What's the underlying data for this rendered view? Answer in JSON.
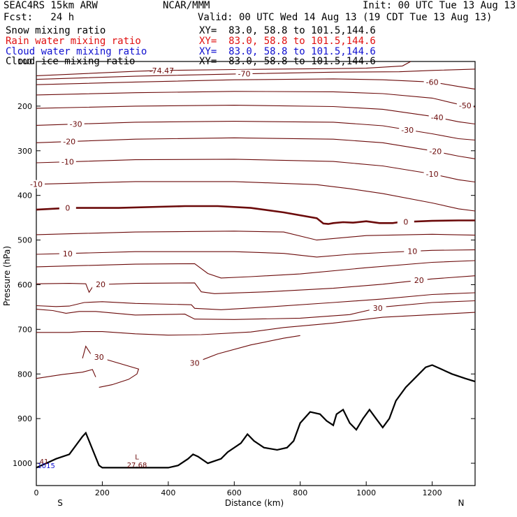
{
  "header": {
    "model": "SEAC4RS 15km ARW",
    "center": "NCAR/MMM",
    "init": "Init: 00 UTC Tue 13 Aug 13",
    "fcst": "Fcst:   24 h",
    "valid": "Valid: 00 UTC Wed 14 Aug 13 (19 CDT Tue 13 Aug 13)"
  },
  "legend": [
    {
      "name": "Snow mixing ratio",
      "xy": "XY=  83.0, 58.8 to 101.5,144.6",
      "color": "#000000"
    },
    {
      "name": "Rain water mixing ratio",
      "xy": "XY=  83.0, 58.8 to 101.5,144.6",
      "color": "#e01010"
    },
    {
      "name": "Cloud water mixing ratio",
      "xy": "XY=  83.0, 58.8 to 101.5,144.6",
      "color": "#1010d0"
    },
    {
      "name": "Cloud ice mixing ratio",
      "xy": "XY=  83.0, 58.8 to 101.5,144.6",
      "color": "#000000"
    }
  ],
  "chart_data": {
    "type": "line",
    "xlabel": "Distance (km)",
    "ylabel": "Pressure (hPa)",
    "xlim": [
      0,
      1330
    ],
    "ylim": [
      1050,
      100
    ],
    "xticks": [
      0,
      200,
      400,
      600,
      800,
      1000,
      1200
    ],
    "yticks": [
      100,
      200,
      300,
      400,
      500,
      600,
      700,
      800,
      900,
      1000
    ],
    "end_labels": {
      "left": "S",
      "right": "N"
    },
    "contour_color": "#6b0a0a",
    "terrain_color": "#000000",
    "isotherm_series": [
      {
        "label": "-74.47",
        "lx": 380,
        "points": [
          [
            0,
            132
          ],
          [
            300,
            122
          ],
          [
            380,
            120
          ],
          [
            600,
            118
          ],
          [
            900,
            116
          ],
          [
            1000,
            115
          ],
          [
            1110,
            110
          ],
          [
            1135,
            100
          ]
        ]
      },
      {
        "label": "-70",
        "lx": 630,
        "points": [
          [
            0,
            140
          ],
          [
            300,
            133
          ],
          [
            600,
            128
          ],
          [
            900,
            124
          ],
          [
            1100,
            123
          ],
          [
            1200,
            120
          ],
          [
            1330,
            117
          ]
        ]
      },
      {
        "label": "-60",
        "lx": 1200,
        "points": [
          [
            0,
            152
          ],
          [
            300,
            146
          ],
          [
            600,
            141
          ],
          [
            900,
            139
          ],
          [
            1050,
            141
          ],
          [
            1200,
            146
          ],
          [
            1280,
            156
          ],
          [
            1330,
            162
          ]
        ]
      },
      {
        "label": "-50",
        "lx": 1300,
        "points": [
          [
            0,
            175
          ],
          [
            300,
            170
          ],
          [
            600,
            167
          ],
          [
            900,
            168
          ],
          [
            1050,
            172
          ],
          [
            1200,
            182
          ],
          [
            1280,
            196
          ],
          [
            1330,
            202
          ]
        ]
      },
      {
        "label": "-40",
        "lx": 1215,
        "points": [
          [
            0,
            205
          ],
          [
            300,
            200
          ],
          [
            600,
            198
          ],
          [
            900,
            201
          ],
          [
            1050,
            207
          ],
          [
            1200,
            223
          ],
          [
            1280,
            235
          ],
          [
            1330,
            240
          ]
        ]
      },
      {
        "label": "-30",
        "lx": 120,
        "lx2": 1125,
        "points": [
          [
            0,
            243
          ],
          [
            300,
            236
          ],
          [
            600,
            234
          ],
          [
            900,
            236
          ],
          [
            1050,
            244
          ],
          [
            1200,
            262
          ],
          [
            1280,
            273
          ],
          [
            1330,
            276
          ]
        ]
      },
      {
        "label": "-20",
        "lx": 100,
        "lx2": 1210,
        "points": [
          [
            0,
            282
          ],
          [
            300,
            274
          ],
          [
            600,
            271
          ],
          [
            900,
            274
          ],
          [
            1050,
            282
          ],
          [
            1200,
            300
          ],
          [
            1280,
            312
          ],
          [
            1330,
            318
          ]
        ]
      },
      {
        "label": "-10",
        "lx": 95,
        "lx2": 1200,
        "points": [
          [
            0,
            327
          ],
          [
            300,
            320
          ],
          [
            600,
            319
          ],
          [
            900,
            324
          ],
          [
            1050,
            334
          ],
          [
            1200,
            352
          ],
          [
            1280,
            365
          ],
          [
            1330,
            370
          ]
        ]
      },
      {
        "label": "-10",
        "lx": 0,
        "points": [
          [
            0,
            375
          ],
          [
            300,
            369
          ],
          [
            600,
            369
          ],
          [
            850,
            376
          ],
          [
            950,
            385
          ],
          [
            1050,
            396
          ],
          [
            1200,
            417
          ],
          [
            1280,
            430
          ],
          [
            1330,
            435
          ]
        ]
      },
      {
        "label": "0",
        "lx": 95,
        "lx2": 1120,
        "bold": true,
        "points": [
          [
            0,
            432
          ],
          [
            100,
            428
          ],
          [
            250,
            428
          ],
          [
            450,
            424
          ],
          [
            550,
            424
          ],
          [
            650,
            428
          ],
          [
            750,
            438
          ],
          [
            850,
            451
          ],
          [
            870,
            463
          ],
          [
            885,
            464
          ],
          [
            900,
            462
          ],
          [
            930,
            460
          ],
          [
            960,
            461
          ],
          [
            1000,
            458
          ],
          [
            1040,
            462
          ],
          [
            1080,
            462
          ],
          [
            1100,
            460
          ],
          [
            1200,
            457
          ],
          [
            1280,
            456
          ],
          [
            1330,
            456
          ]
        ]
      },
      {
        "label": "",
        "lx": 0,
        "points": [
          [
            0,
            488
          ],
          [
            300,
            482
          ],
          [
            600,
            480
          ],
          [
            750,
            482
          ],
          [
            850,
            500
          ],
          [
            1000,
            490
          ],
          [
            1200,
            487
          ],
          [
            1330,
            489
          ]
        ]
      },
      {
        "label": "10",
        "lx": 95,
        "lx2": 1140,
        "points": [
          [
            0,
            532
          ],
          [
            300,
            526
          ],
          [
            600,
            526
          ],
          [
            750,
            530
          ],
          [
            800,
            534
          ],
          [
            850,
            538
          ],
          [
            950,
            532
          ],
          [
            1050,
            528
          ],
          [
            1200,
            523
          ],
          [
            1330,
            522
          ]
        ]
      },
      {
        "label": "",
        "lx": 0,
        "points": [
          [
            0,
            560
          ],
          [
            300,
            554
          ],
          [
            480,
            553
          ],
          [
            520,
            575
          ],
          [
            560,
            585
          ],
          [
            650,
            582
          ],
          [
            800,
            576
          ],
          [
            1000,
            562
          ],
          [
            1200,
            550
          ],
          [
            1330,
            546
          ]
        ]
      },
      {
        "label": "20",
        "lx": 195,
        "lx2": 1160,
        "points": [
          [
            0,
            598
          ],
          [
            100,
            597
          ],
          [
            150,
            598
          ],
          [
            160,
            617
          ],
          [
            175,
            600
          ],
          [
            300,
            597
          ],
          [
            480,
            596
          ],
          [
            500,
            616
          ],
          [
            540,
            620
          ],
          [
            700,
            616
          ],
          [
            900,
            608
          ],
          [
            1050,
            599
          ],
          [
            1200,
            587
          ],
          [
            1330,
            580
          ]
        ]
      },
      {
        "label": "",
        "lx": 0,
        "points": [
          [
            0,
            647
          ],
          [
            60,
            649
          ],
          [
            100,
            648
          ],
          [
            145,
            640
          ],
          [
            200,
            638
          ],
          [
            300,
            642
          ],
          [
            470,
            645
          ],
          [
            480,
            653
          ],
          [
            560,
            656
          ],
          [
            700,
            650
          ],
          [
            900,
            640
          ],
          [
            1050,
            632
          ],
          [
            1200,
            622
          ],
          [
            1330,
            618
          ]
        ]
      },
      {
        "label": "30",
        "lx": 1035,
        "points": [
          [
            0,
            655
          ],
          [
            50,
            658
          ],
          [
            90,
            664
          ],
          [
            130,
            660
          ],
          [
            180,
            660
          ],
          [
            300,
            668
          ],
          [
            450,
            666
          ],
          [
            480,
            677
          ],
          [
            600,
            678
          ],
          [
            800,
            675
          ],
          [
            950,
            667
          ],
          [
            1050,
            650
          ],
          [
            1200,
            640
          ],
          [
            1330,
            636
          ]
        ]
      },
      {
        "label": "",
        "lx": 0,
        "points": [
          [
            0,
            707
          ],
          [
            100,
            707
          ],
          [
            140,
            705
          ],
          [
            200,
            705
          ],
          [
            300,
            710
          ],
          [
            400,
            713
          ],
          [
            500,
            712
          ],
          [
            650,
            706
          ],
          [
            750,
            696
          ],
          [
            900,
            686
          ],
          [
            1050,
            673
          ],
          [
            1330,
            662
          ]
        ]
      },
      {
        "label": "30",
        "lx": 450,
        "points": [
          [
            480,
            775
          ],
          [
            550,
            755
          ],
          [
            650,
            735
          ],
          [
            750,
            720
          ],
          [
            800,
            714
          ]
        ]
      },
      {
        "label": "",
        "lx": 0,
        "points": [
          [
            0,
            810
          ],
          [
            80,
            801
          ],
          [
            140,
            796
          ],
          [
            170,
            790
          ],
          [
            180,
            807
          ]
        ]
      },
      {
        "label": "30",
        "lx": 195,
        "points": [
          [
            140,
            765
          ],
          [
            150,
            738
          ],
          [
            165,
            755
          ],
          [
            200,
            765
          ],
          [
            310,
            789
          ],
          [
            305,
            800
          ],
          [
            280,
            812
          ],
          [
            230,
            824
          ],
          [
            190,
            830
          ]
        ]
      }
    ],
    "terrain": [
      [
        0,
        1010
      ],
      [
        30,
        1000
      ],
      [
        60,
        990
      ],
      [
        100,
        980
      ],
      [
        140,
        940
      ],
      [
        150,
        932
      ],
      [
        160,
        950
      ],
      [
        190,
        1005
      ],
      [
        200,
        1010
      ],
      [
        400,
        1010
      ],
      [
        430,
        1005
      ],
      [
        460,
        990
      ],
      [
        475,
        980
      ],
      [
        490,
        985
      ],
      [
        520,
        1000
      ],
      [
        560,
        990
      ],
      [
        580,
        975
      ],
      [
        620,
        955
      ],
      [
        640,
        935
      ],
      [
        660,
        950
      ],
      [
        690,
        965
      ],
      [
        730,
        970
      ],
      [
        760,
        965
      ],
      [
        780,
        950
      ],
      [
        800,
        910
      ],
      [
        830,
        885
      ],
      [
        860,
        890
      ],
      [
        880,
        905
      ],
      [
        900,
        915
      ],
      [
        910,
        890
      ],
      [
        930,
        880
      ],
      [
        950,
        910
      ],
      [
        970,
        925
      ],
      [
        990,
        900
      ],
      [
        1010,
        880
      ],
      [
        1030,
        900
      ],
      [
        1050,
        920
      ],
      [
        1070,
        900
      ],
      [
        1090,
        860
      ],
      [
        1120,
        830
      ],
      [
        1140,
        815
      ],
      [
        1160,
        800
      ],
      [
        1180,
        785
      ],
      [
        1200,
        780
      ],
      [
        1230,
        790
      ],
      [
        1260,
        800
      ],
      [
        1300,
        810
      ],
      [
        1330,
        817
      ]
    ],
    "annotations": [
      {
        "text": "L",
        "x": 305,
        "p": 985
      },
      {
        "text": "27.68",
        "x": 305,
        "p": 1003
      },
      {
        "text": ".41",
        "x": 20,
        "p": 995
      },
      {
        "text": "1015",
        "x": 30,
        "p": 1005
      }
    ]
  }
}
